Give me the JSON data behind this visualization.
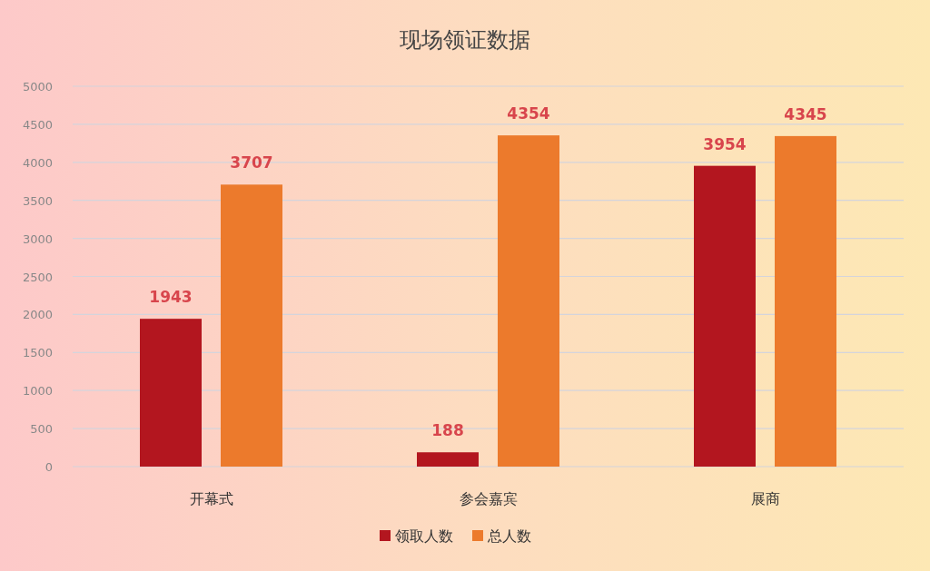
{
  "chart_data": {
    "type": "bar",
    "title": "现场领证数据",
    "categories": [
      "开幕式",
      "参会嘉宾",
      "展商"
    ],
    "series": [
      {
        "name": "领取人数",
        "color": "#b3161f",
        "values": [
          1943,
          188,
          3954
        ]
      },
      {
        "name": "总人数",
        "color": "#ec7a2c",
        "values": [
          3707,
          4354,
          4345
        ]
      }
    ],
    "ylim": [
      0,
      5000
    ],
    "yticks": [
      0,
      500,
      1000,
      1500,
      2000,
      2500,
      3000,
      3500,
      4000,
      4500,
      5000
    ],
    "grid": "y",
    "legend": "bottom",
    "data_labels": true
  }
}
